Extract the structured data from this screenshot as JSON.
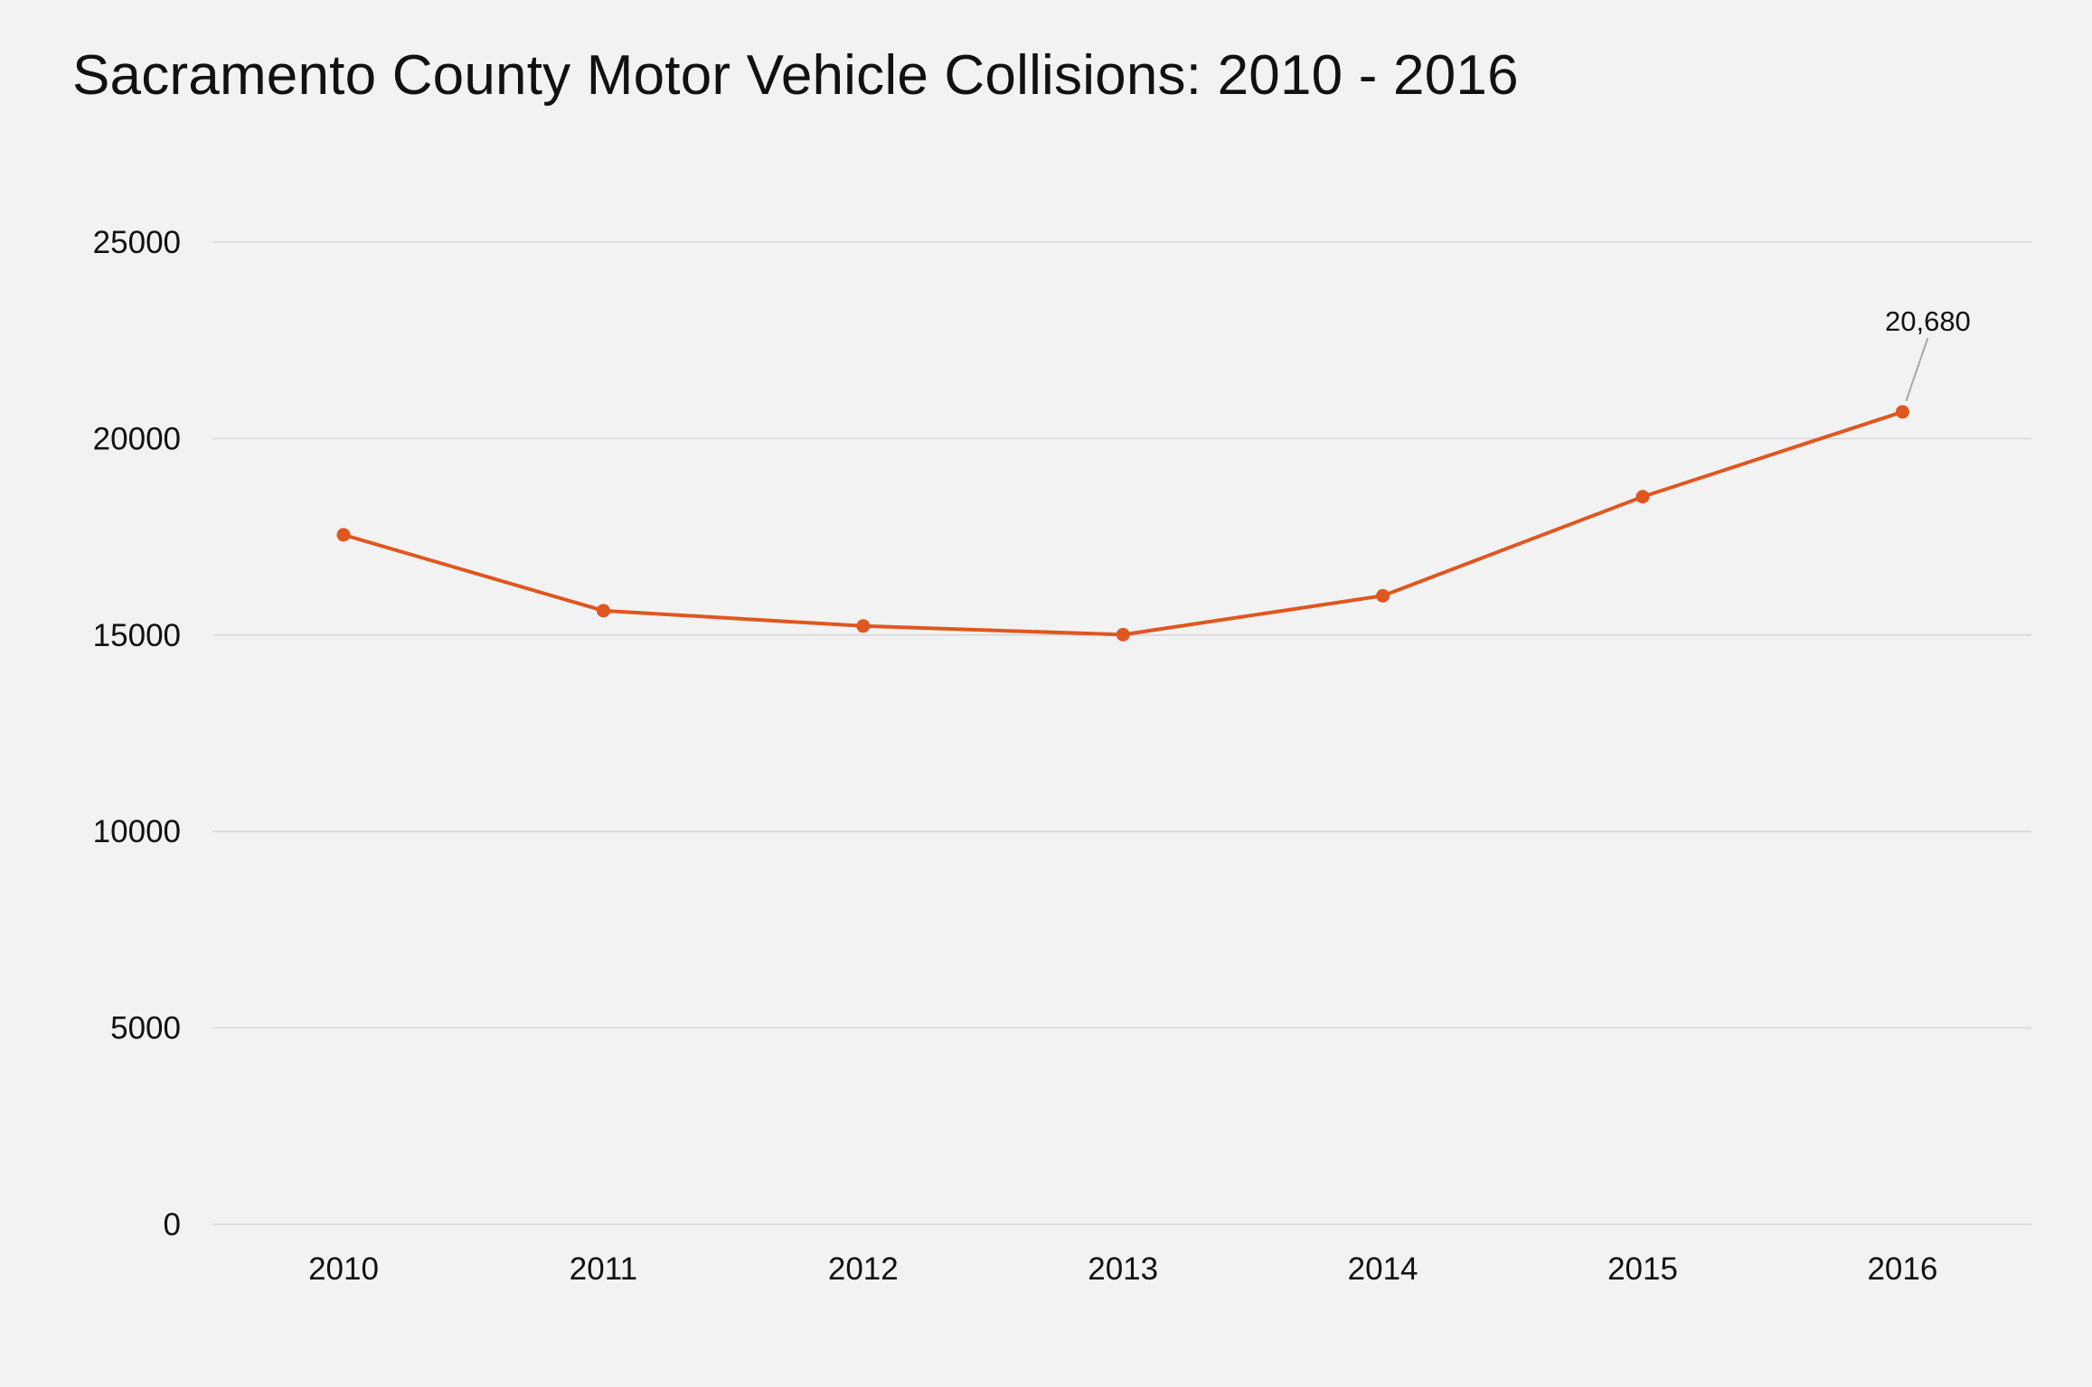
{
  "colors": {
    "background": "#f2f2f2",
    "series_line": "#e0561f",
    "gridline": "#d6d6d6",
    "leader_line": "#a6a6a6",
    "text": "#111111"
  },
  "chart_data": {
    "type": "line",
    "title": "Sacramento County Motor Vehicle Collisions: 2010 - 2016",
    "xlabel": "",
    "ylabel": "",
    "categories": [
      "2010",
      "2011",
      "2012",
      "2013",
      "2014",
      "2015",
      "2016"
    ],
    "series": [
      {
        "values": [
          17550,
          15620,
          15230,
          15010,
          16000,
          18520,
          20680
        ]
      }
    ],
    "ylim": [
      0,
      25000
    ],
    "yticks": [
      0,
      5000,
      10000,
      15000,
      20000,
      25000
    ],
    "ytick_labels": [
      "0",
      "5000",
      "10000",
      "15000",
      "20000",
      "25000"
    ],
    "grid": true,
    "legend": "none",
    "annotations": [
      {
        "category": "2016",
        "text": "20,680"
      }
    ]
  }
}
